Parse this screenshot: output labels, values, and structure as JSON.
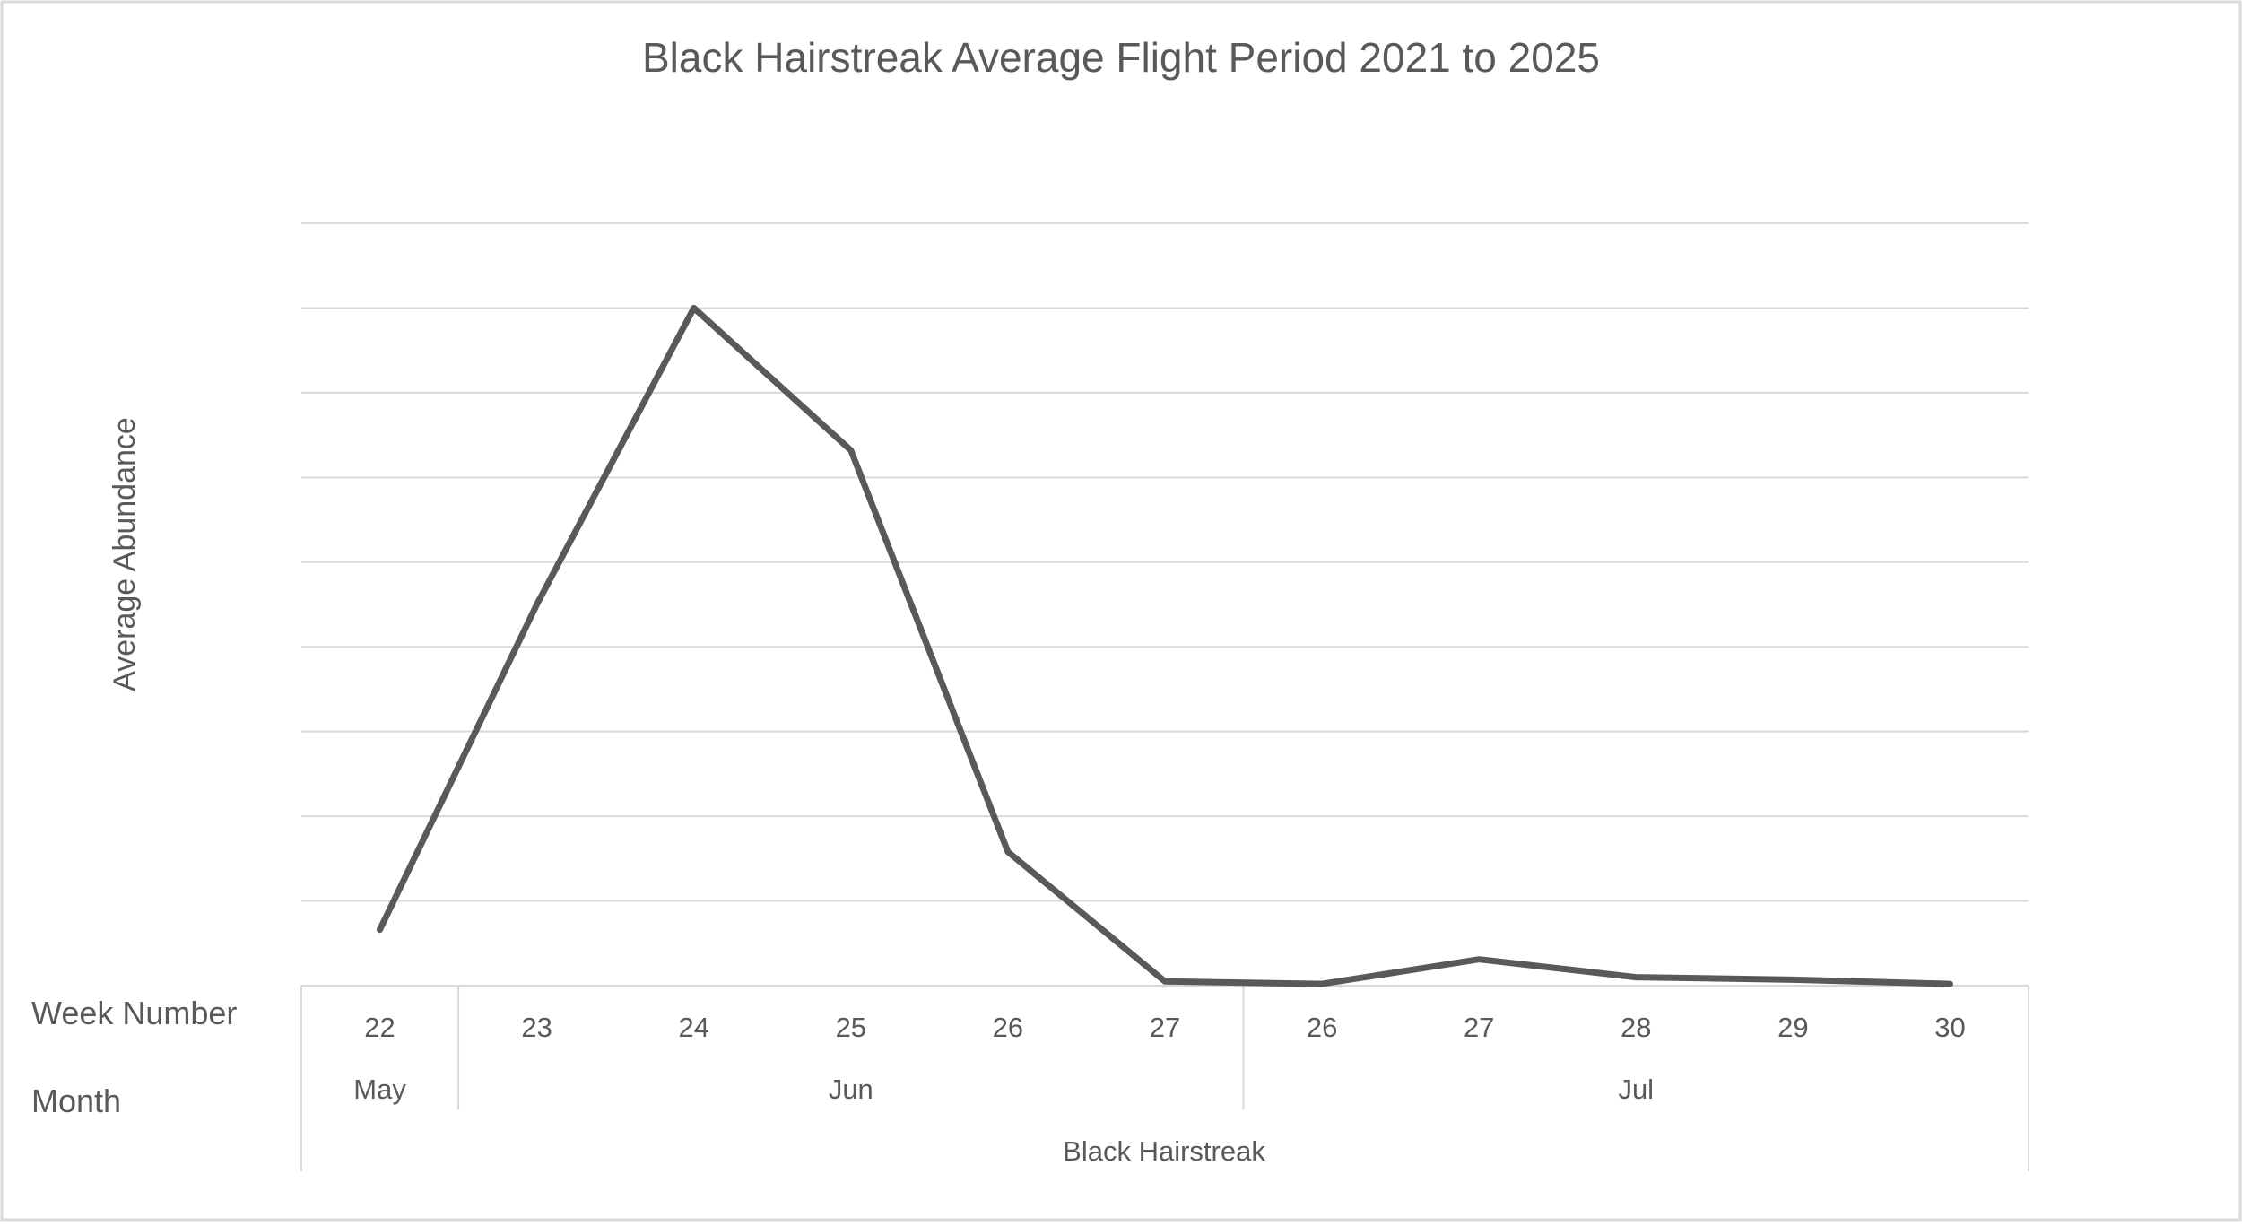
{
  "chart_data": {
    "type": "line",
    "title": "Black Hairstreak Average Flight Period 2021 to 2025",
    "ylabel": "Average Abundance",
    "xlabel": "",
    "y_tick_labels_shown": false,
    "ylim": [
      0,
      9
    ],
    "grid": true,
    "legend": "none",
    "row_labels": [
      "Week Number",
      "Month"
    ],
    "categories": [
      "22",
      "23",
      "24",
      "25",
      "26",
      "27",
      "26",
      "27",
      "28",
      "29",
      "30"
    ],
    "months": [
      {
        "label": "May",
        "span": 1
      },
      {
        "label": "Jun",
        "span": 5
      },
      {
        "label": "Jul",
        "span": 5
      }
    ],
    "group_label": "Black Hairstreak",
    "series": [
      {
        "name": "",
        "values": [
          0.66,
          4.5,
          8.0,
          6.32,
          1.58,
          0.05,
          0.02,
          0.31,
          0.1,
          0.07,
          0.02
        ]
      }
    ]
  },
  "colors": {
    "line": "#595959",
    "gridline": "#d9d9d9",
    "axis_text": "#595959",
    "title_text": "#595959",
    "border": "#d9d9d9",
    "background": "#ffffff"
  }
}
